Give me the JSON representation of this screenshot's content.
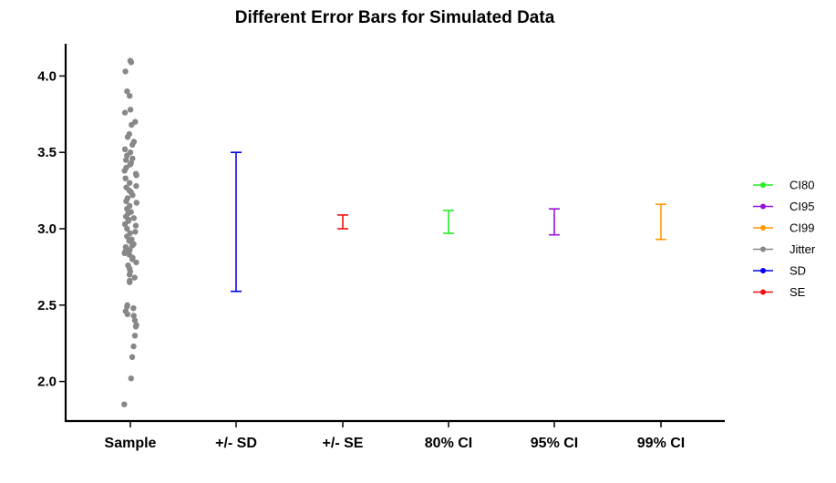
{
  "chart_data": {
    "type": "scatter",
    "title": "Different Error Bars for Simulated Data",
    "xlabel": "",
    "ylabel": "",
    "categories": [
      "Sample",
      "+/- SD",
      "+/- SE",
      "80% CI",
      "95% CI",
      "99% CI"
    ],
    "ylim": [
      1.73,
      4.2
    ],
    "yticks": [
      "2.0",
      "2.5",
      "3.0",
      "3.5",
      "4.0"
    ],
    "grid": false,
    "legend_position": "right",
    "jitter_color": "#888888",
    "jitter_points": [
      4.1,
      4.09,
      4.03,
      3.9,
      3.87,
      3.78,
      3.76,
      3.7,
      3.68,
      3.62,
      3.6,
      3.57,
      3.55,
      3.52,
      3.5,
      3.48,
      3.46,
      3.45,
      3.43,
      3.42,
      3.4,
      3.38,
      3.36,
      3.35,
      3.33,
      3.3,
      3.28,
      3.27,
      3.25,
      3.24,
      3.22,
      3.2,
      3.18,
      3.17,
      3.15,
      3.13,
      3.11,
      3.1,
      3.08,
      3.07,
      3.06,
      3.05,
      3.03,
      3.02,
      3.0,
      2.98,
      2.97,
      2.95,
      2.93,
      2.92,
      2.9,
      2.89,
      2.88,
      2.87,
      2.86,
      2.85,
      2.84,
      2.83,
      2.81,
      2.8,
      2.78,
      2.76,
      2.74,
      2.72,
      2.7,
      2.68,
      2.66,
      2.65,
      2.5,
      2.49,
      2.48,
      2.46,
      2.44,
      2.43,
      2.4,
      2.37,
      2.36,
      2.3,
      2.23,
      2.16,
      2.02,
      1.85
    ],
    "error_bars": [
      {
        "category": "+/- SD",
        "series": "SD",
        "low": 2.59,
        "high": 3.5,
        "color": "#0000ee"
      },
      {
        "category": "+/- SE",
        "series": "SE",
        "low": 3.0,
        "high": 3.09,
        "color": "#ee1111"
      },
      {
        "category": "80% CI",
        "series": "CI80",
        "low": 2.97,
        "high": 3.12,
        "color": "#22ee22"
      },
      {
        "category": "95% CI",
        "series": "CI95",
        "low": 2.96,
        "high": 3.13,
        "color": "#9911dd"
      },
      {
        "category": "99% CI",
        "series": "CI99",
        "low": 2.93,
        "high": 3.16,
        "color": "#ff9900"
      }
    ],
    "legend": [
      {
        "name": "CI80",
        "color": "#22ee22"
      },
      {
        "name": "CI95",
        "color": "#9911dd"
      },
      {
        "name": "CI99",
        "color": "#ff9900"
      },
      {
        "name": "Jitter",
        "color": "#888888"
      },
      {
        "name": "SD",
        "color": "#0000ee"
      },
      {
        "name": "SE",
        "color": "#ee1111"
      }
    ]
  }
}
